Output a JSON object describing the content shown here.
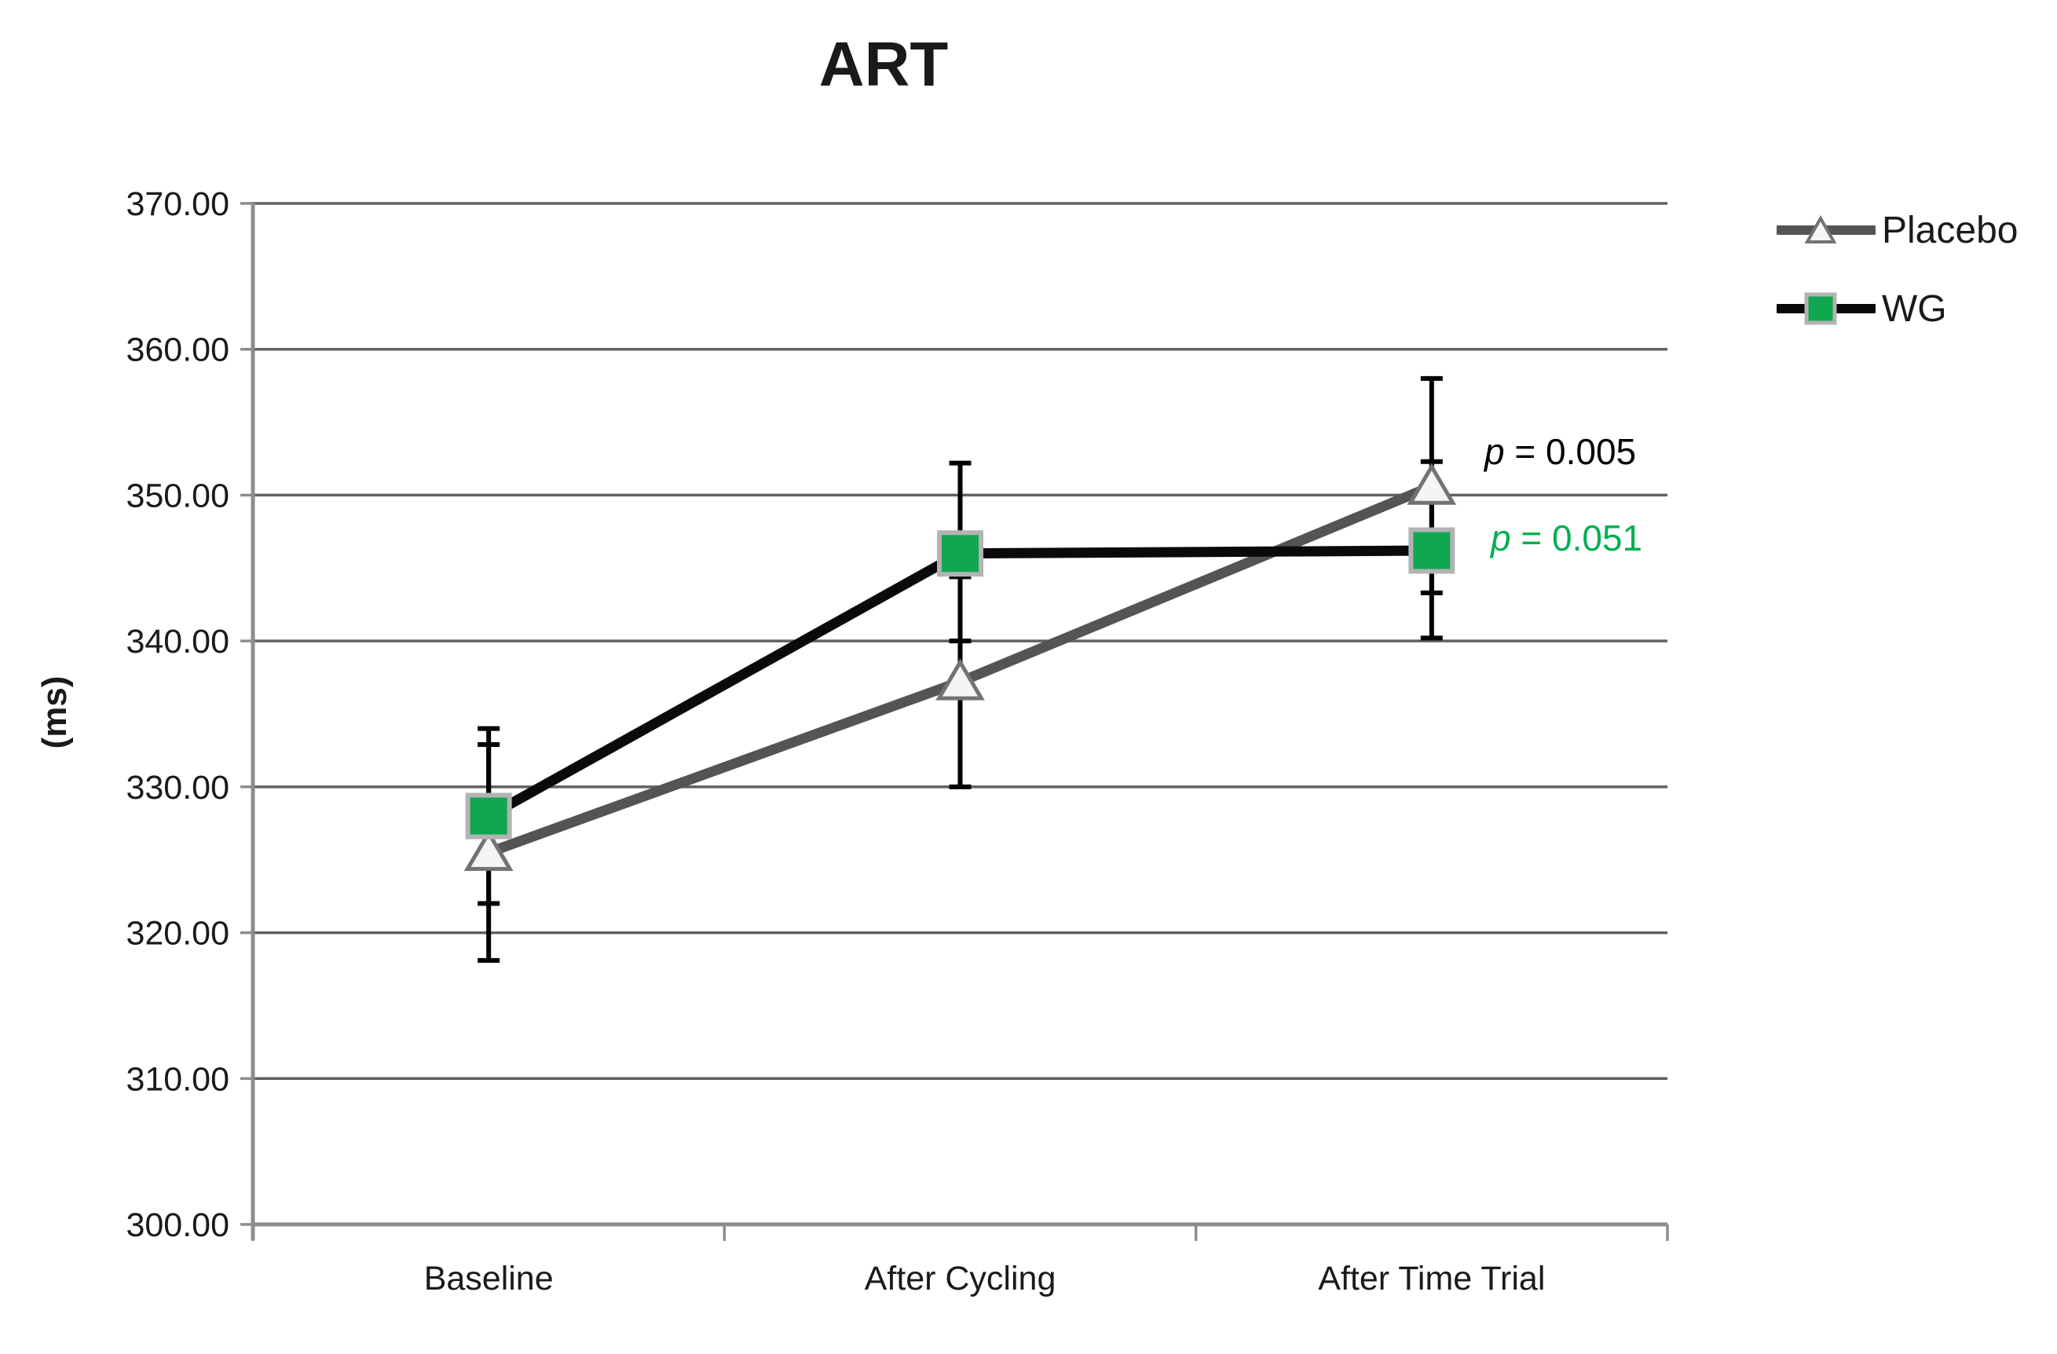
{
  "title": "ART",
  "y_axis_label": "(ms)",
  "legend": {
    "items": [
      {
        "label": "Placebo"
      },
      {
        "label": "WG"
      }
    ]
  },
  "annotations": [
    {
      "symbol": "p",
      "rest": " = 0.005"
    },
    {
      "symbol": "p",
      "rest": " = 0.051"
    }
  ],
  "colors": {
    "background": "#ffffff",
    "gridline": "#616161",
    "axis": "#8c8c8c",
    "tick_label": "#1a1a1a",
    "title": "#1a1a1a",
    "error_bar": "#000000",
    "placebo_line": "#545454",
    "placebo_marker_fill": "#f5f5f5",
    "placebo_marker_stroke": "#737373",
    "wg_line": "#0a0a0a",
    "wg_marker_fill": "#0fa750",
    "wg_marker_stroke": "#b3b3b3",
    "annotation_placebo": "#000000",
    "annotation_wg": "#00b052"
  },
  "chart_data": {
    "type": "line",
    "title": "ART",
    "ylabel": "(ms)",
    "xlabel": "",
    "categories": [
      "Baseline",
      "After Cycling",
      "After Time Trial"
    ],
    "series": [
      {
        "name": "Placebo",
        "marker": "triangle",
        "values": [
          325.5,
          337.2,
          350.6
        ],
        "error_upper": [
          332.9,
          344.4,
          358.0
        ],
        "error_lower": [
          318.1,
          330.0,
          343.3
        ]
      },
      {
        "name": "WG",
        "marker": "square",
        "values": [
          328.0,
          346.0,
          346.2
        ],
        "error_upper": [
          334.0,
          352.2,
          352.3
        ],
        "error_lower": [
          322.0,
          340.0,
          340.2
        ]
      }
    ],
    "ylim": [
      300,
      370
    ],
    "ytick_step": 10,
    "ytick_labels": [
      "300.00",
      "310.00",
      "320.00",
      "330.00",
      "340.00",
      "350.00",
      "360.00",
      "370.00"
    ],
    "grid": true,
    "legend_position": "right",
    "annotations": [
      {
        "text": "p = 0.005",
        "series": "Placebo",
        "location": "right of After Time Trial point"
      },
      {
        "text": "p = 0.051",
        "series": "WG",
        "location": "right of After Time Trial point"
      }
    ]
  }
}
